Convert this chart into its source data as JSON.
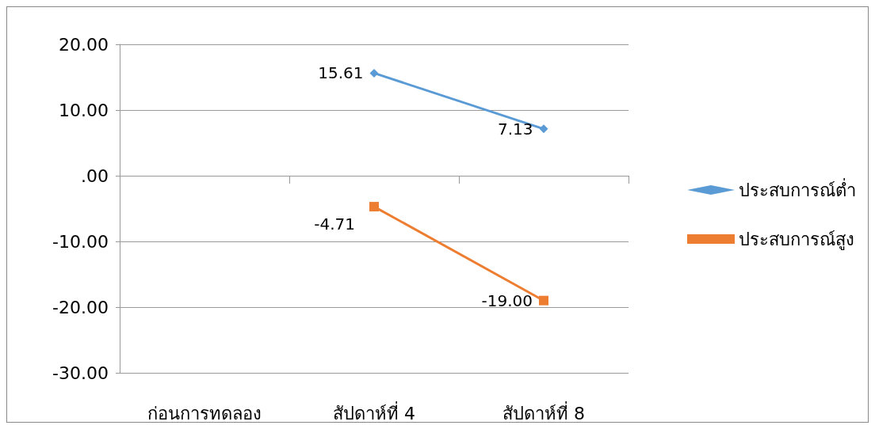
{
  "chart_data": {
    "type": "line",
    "categories": [
      "ก่อนการทดลอง",
      "สัปดาห์ที่ 4",
      "สัปดาห์ที่ 8"
    ],
    "series": [
      {
        "name": "ประสบการณ์ต่ำ",
        "color": "#5b9bd5",
        "marker": "diamond",
        "values": [
          null,
          15.61,
          7.13
        ],
        "value_labels": [
          null,
          "15.61",
          "7.13"
        ]
      },
      {
        "name": "ประสบการณ์สูง",
        "color": "#ed7d31",
        "marker": "square",
        "values": [
          null,
          -4.71,
          -19.0
        ],
        "value_labels": [
          null,
          "-4.71",
          "-19.00"
        ]
      }
    ],
    "ylim": [
      -30,
      20
    ],
    "yticks": [
      {
        "value": -30,
        "label": "-30.00"
      },
      {
        "value": -20,
        "label": "-20.00"
      },
      {
        "value": -10,
        "label": "-10.00"
      },
      {
        "value": 0,
        "label": ".00"
      },
      {
        "value": 10,
        "label": "10.00"
      },
      {
        "value": 20,
        "label": "20.00"
      }
    ],
    "grid": "y",
    "legend": "right"
  }
}
